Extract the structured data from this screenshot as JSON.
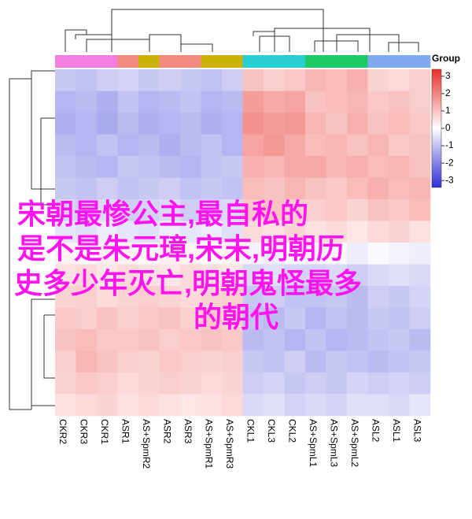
{
  "chart_data": {
    "type": "heatmap",
    "categories": [
      "CKR2",
      "CKR3",
      "CKR1",
      "ASR1",
      "AS+SpmR2",
      "ASR2",
      "ASR3",
      "AS+SpmR1",
      "AS+SpmR3",
      "CKL1",
      "CKL3",
      "CKL2",
      "AS+SpmL1",
      "AS+SpmL3",
      "AS+SpmL2",
      "ASL2",
      "ASL1",
      "ASL3"
    ],
    "group_title": "Group",
    "group_colors": [
      "#f27ee0",
      "#f27ee0",
      "#f27ee0",
      "#f28a80",
      "#cdb20a",
      "#f28a80",
      "#f28a80",
      "#cdb20a",
      "#cdb20a",
      "#27cfd1",
      "#27cfd1",
      "#27cfd1",
      "#1dcb66",
      "#1dcb66",
      "#1dcb66",
      "#82a8f0",
      "#82a8f0",
      "#82a8f0"
    ],
    "low_color": "#2e2ed6",
    "mid_color": "#ffffff",
    "high_color": "#e8302a",
    "colorlim": [
      -3.4,
      3.4
    ],
    "colorticks": [
      3,
      2,
      1,
      0,
      -1,
      -2,
      -3
    ],
    "values": [
      [
        -0.9,
        -1.0,
        -0.8,
        -0.7,
        -0.9,
        -0.8,
        -0.9,
        -1.0,
        -0.8,
        1.0,
        0.8,
        0.9,
        1.2,
        1.1,
        1.3,
        0.7,
        0.6,
        0.8
      ],
      [
        -1.2,
        -1.1,
        -1.3,
        -1.0,
        -1.2,
        -1.1,
        -1.0,
        -1.2,
        -1.1,
        1.6,
        1.4,
        1.5,
        1.0,
        1.1,
        1.2,
        0.9,
        1.0,
        0.8
      ],
      [
        -1.3,
        -1.2,
        -1.4,
        -1.1,
        -1.3,
        -1.2,
        -1.1,
        -1.3,
        -1.2,
        1.8,
        1.6,
        1.7,
        1.2,
        1.0,
        1.3,
        1.0,
        1.1,
        0.9
      ],
      [
        -1.1,
        -1.2,
        -1.0,
        -1.2,
        -1.1,
        -1.3,
        -1.1,
        -1.0,
        -1.2,
        1.5,
        1.7,
        1.4,
        1.1,
        1.2,
        1.0,
        1.2,
        0.9,
        1.0
      ],
      [
        -1.0,
        -1.1,
        -1.2,
        -0.9,
        -1.0,
        -1.1,
        -1.2,
        -1.0,
        -0.9,
        1.3,
        1.2,
        1.4,
        1.4,
        1.2,
        1.3,
        1.1,
        1.2,
        1.0
      ],
      [
        -0.9,
        -1.0,
        -0.8,
        -1.0,
        -0.9,
        -0.8,
        -1.0,
        -0.9,
        -1.0,
        1.1,
        1.0,
        1.2,
        1.0,
        0.9,
        1.1,
        1.3,
        1.1,
        1.2
      ],
      [
        -0.7,
        -0.8,
        -0.6,
        -0.8,
        -0.7,
        -0.6,
        -0.8,
        -0.7,
        -0.6,
        0.9,
        1.0,
        0.8,
        0.8,
        0.9,
        0.7,
        1.0,
        0.9,
        1.1
      ],
      [
        -0.4,
        -0.5,
        -0.3,
        -0.4,
        -0.5,
        -0.3,
        -0.4,
        -0.3,
        -0.5,
        0.6,
        0.5,
        0.7,
        0.5,
        0.6,
        0.4,
        0.6,
        0.7,
        0.5
      ],
      [
        0.2,
        0.1,
        0.3,
        0.2,
        0.1,
        0.3,
        0.2,
        0.1,
        0.2,
        -0.2,
        -0.3,
        -0.1,
        -0.2,
        -0.1,
        -0.3,
        -0.1,
        -0.2,
        -0.3
      ],
      [
        0.5,
        0.6,
        0.4,
        0.6,
        0.5,
        0.4,
        0.6,
        0.5,
        0.4,
        -0.6,
        -0.5,
        -0.7,
        -0.7,
        -0.6,
        -0.8,
        -0.6,
        -0.5,
        -0.6
      ],
      [
        0.7,
        0.8,
        0.6,
        0.7,
        0.8,
        0.7,
        0.6,
        0.7,
        0.8,
        -0.9,
        -0.8,
        -1.0,
        -1.0,
        -0.9,
        -1.1,
        -0.8,
        -0.9,
        -0.7
      ],
      [
        0.9,
        0.8,
        1.0,
        0.8,
        0.9,
        1.0,
        0.8,
        0.9,
        0.7,
        -1.0,
        -1.1,
        -0.9,
        -1.2,
        -1.0,
        -1.1,
        -0.9,
        -1.0,
        -0.8
      ],
      [
        1.0,
        1.1,
        0.9,
        0.9,
        1.0,
        0.8,
        0.9,
        1.0,
        0.9,
        -1.1,
        -1.0,
        -1.2,
        -1.0,
        -1.2,
        -1.1,
        -1.0,
        -0.9,
        -1.1
      ],
      [
        0.8,
        1.2,
        1.0,
        0.8,
        0.7,
        0.9,
        0.8,
        0.7,
        0.8,
        -0.9,
        -1.0,
        -0.8,
        -1.1,
        -0.9,
        -1.0,
        -1.1,
        -1.0,
        -0.9
      ],
      [
        0.7,
        0.9,
        0.8,
        0.6,
        0.7,
        0.8,
        0.7,
        0.6,
        0.7,
        -0.8,
        -0.7,
        -0.9,
        -0.8,
        -0.9,
        -0.7,
        -0.8,
        -0.7,
        -0.8
      ],
      [
        0.5,
        0.6,
        0.7,
        0.5,
        0.6,
        0.5,
        0.4,
        0.5,
        0.6,
        -0.6,
        -0.5,
        -0.7,
        -0.6,
        -0.7,
        -0.5,
        -0.5,
        -0.6,
        -0.4
      ]
    ],
    "annotations": [
      "宋朝最惨公主,最自私的",
      "是不是朱元璋,宋末,明朝历",
      "史多少年灭亡,明朝鬼怪最多",
      "的朝代"
    ]
  }
}
